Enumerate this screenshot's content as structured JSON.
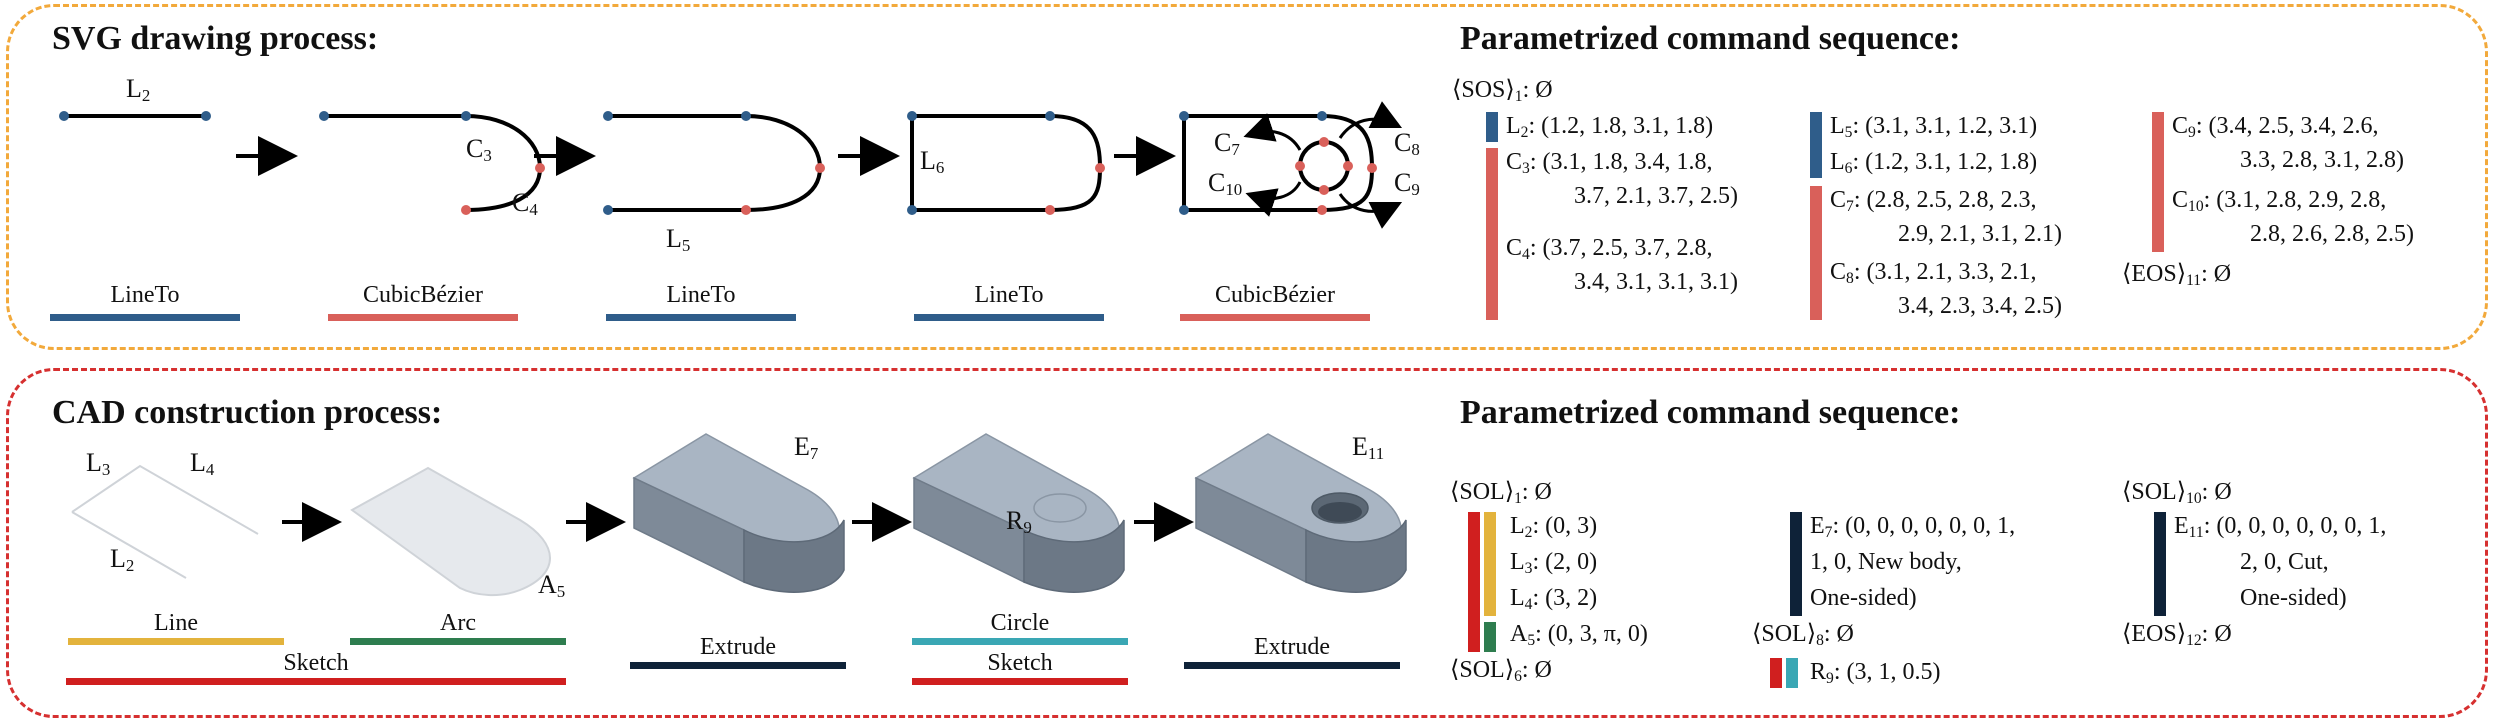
{
  "colors": {
    "top_border": "#F2A93B",
    "bottom_border": "#D63030",
    "lineto": "#2F5D8A",
    "cubic": "#D9605A",
    "line": "#E3B33C",
    "arc": "#2E7D4F",
    "sketch": "#D01F1F",
    "extrude": "#0E2238",
    "circle": "#3AA7B4"
  },
  "svg_panel": {
    "title": "SVG drawing process:",
    "labels": {
      "l2": "L",
      "l2_sub": "2",
      "c3": "C",
      "c3_sub": "3",
      "c4": "C",
      "c4_sub": "4",
      "l5": "L",
      "l5_sub": "5",
      "l6": "L",
      "l6_sub": "6",
      "c7": "C",
      "c7_sub": "7",
      "c10": "C",
      "c10_sub": "10",
      "c8": "C",
      "c8_sub": "8",
      "c9": "C",
      "c9_sub": "9"
    },
    "captions": [
      "LineTo",
      "CubicBézier",
      "LineTo",
      "LineTo",
      "CubicBézier"
    ],
    "seq_title": "Parametrized command sequence:",
    "seq": {
      "sos": "⟨SOS⟩",
      "sos_sub": "1",
      "sos_val": ": Ø",
      "l2": "L",
      "l2_sub": "2",
      "l2_val": ": (1.2, 1.8, 3.1, 1.8)",
      "c3": "C",
      "c3_sub": "3",
      "c3_val1": ": (3.1, 1.8, 3.4, 1.8,",
      "c3_val2": "3.7, 2.1, 3.7, 2.5)",
      "c4": "C",
      "c4_sub": "4",
      "c4_val1": ": (3.7, 2.5, 3.7, 2.8,",
      "c4_val2": "3.4, 3.1, 3.1, 3.1)",
      "l5": "L",
      "l5_sub": "5",
      "l5_val": ": (3.1, 3.1, 1.2, 3.1)",
      "l6": "L",
      "l6_sub": "6",
      "l6_val": ": (1.2, 3.1, 1.2, 1.8)",
      "c7": "C",
      "c7_sub": "7",
      "c7_val1": ": (2.8, 2.5, 2.8, 2.3,",
      "c7_val2": "2.9, 2.1, 3.1, 2.1)",
      "c8": "C",
      "c8_sub": "8",
      "c8_val1": ": (3.1, 2.1, 3.3, 2.1,",
      "c8_val2": "3.4, 2.3, 3.4, 2.5)",
      "c9": "C",
      "c9_sub": "9",
      "c9_val1": ": (3.4, 2.5, 3.4, 2.6,",
      "c9_val2": "3.3, 2.8, 3.1, 2.8)",
      "c10": "C",
      "c10_sub": "10",
      "c10_val1": ": (3.1, 2.8, 2.9, 2.8,",
      "c10_val2": "2.8, 2.6, 2.8, 2.5)",
      "eos": "⟨EOS⟩",
      "eos_sub": "11",
      "eos_val": ": Ø"
    }
  },
  "cad_panel": {
    "title": "CAD construction process:",
    "labels": {
      "l3": "L",
      "l3_sub": "3",
      "l4": "L",
      "l4_sub": "4",
      "l2": "L",
      "l2_sub": "2",
      "a5": "A",
      "a5_sub": "5",
      "e7": "E",
      "e7_sub": "7",
      "r9": "R",
      "r9_sub": "9",
      "e11": "E",
      "e11_sub": "11"
    },
    "captions": {
      "line": "Line",
      "arc": "Arc",
      "sketch1": "Sketch",
      "extrude1": "Extrude",
      "circle": "Circle",
      "sketch2": "Sketch",
      "extrude2": "Extrude"
    },
    "seq_title": "Parametrized command sequence:",
    "seq": {
      "sol1": "⟨SOL⟩",
      "sol1_sub": "1",
      "sol1_val": ": Ø",
      "l2": "L",
      "l2_sub": "2",
      "l2_val": ": (0, 3)",
      "l3": "L",
      "l3_sub": "3",
      "l3_val": ": (2, 0)",
      "l4": "L",
      "l4_sub": "4",
      "l4_val": ": (3, 2)",
      "a5": "A",
      "a5_sub": "5",
      "a5_val": ": (0, 3, π, 0)",
      "sol6": "⟨SOL⟩",
      "sol6_sub": "6",
      "sol6_val": ": Ø",
      "e7": "E",
      "e7_sub": "7",
      "e7_val1": ": (0, 0, 0, 0, 0, 0, 1,",
      "e7_val2": "1, 0, New body,",
      "e7_val3": "One-sided)",
      "sol8": "⟨SOL⟩",
      "sol8_sub": "8",
      "sol8_val": ": Ø",
      "r9": "R",
      "r9_sub": "9",
      "r9_val": ": (3, 1, 0.5)",
      "sol10": "⟨SOL⟩",
      "sol10_sub": "10",
      "sol10_val": ": Ø",
      "e11": "E",
      "e11_sub": "11",
      "e11_val1": ": (0, 0, 0, 0, 0, 0, 1,",
      "e11_val2": "2, 0, Cut,",
      "e11_val3": "One-sided)",
      "eos": "⟨EOS⟩",
      "eos_sub": "12",
      "eos_val": ": Ø"
    }
  }
}
